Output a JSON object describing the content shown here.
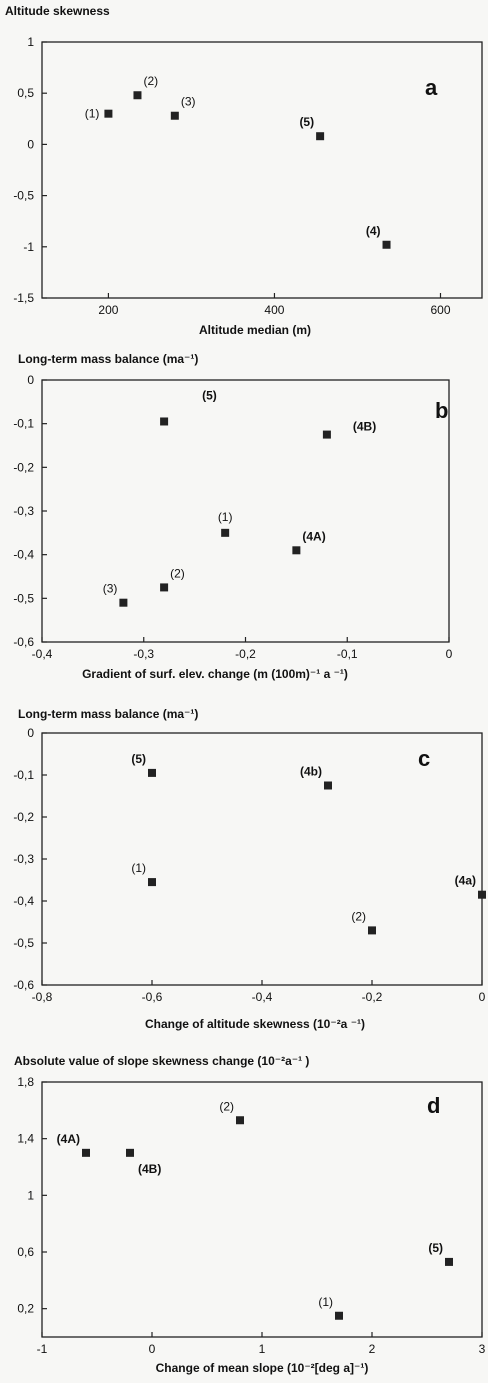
{
  "chart_data": [
    {
      "type": "scatter",
      "panel": "a",
      "title": "Altitude skewness",
      "xlabel": "Altitude median (m)",
      "ylabel": "",
      "xlim": [
        120,
        650
      ],
      "ylim": [
        -1.5,
        1
      ],
      "xticks": [
        {
          "v": 200,
          "label": "200"
        },
        {
          "v": 400,
          "label": "400"
        },
        {
          "v": 600,
          "label": "600"
        }
      ],
      "yticks": [
        {
          "v": 1,
          "label": "1"
        },
        {
          "v": 0.5,
          "label": "0,5"
        },
        {
          "v": 0,
          "label": "0"
        },
        {
          "v": -0.5,
          "label": "-0,5"
        },
        {
          "v": -1,
          "label": "-1"
        },
        {
          "v": -1.5,
          "label": "-1,5"
        }
      ],
      "points": [
        {
          "label": "(1)",
          "x": 200,
          "y": 0.3,
          "bold": false,
          "pos": "left"
        },
        {
          "label": "(2)",
          "x": 235,
          "y": 0.48,
          "bold": false,
          "pos": "upright"
        },
        {
          "label": "(3)",
          "x": 280,
          "y": 0.28,
          "bold": false,
          "pos": "upright"
        },
        {
          "label": "(5)",
          "x": 455,
          "y": 0.08,
          "bold": true,
          "pos": "upleft"
        },
        {
          "label": "(4)",
          "x": 535,
          "y": -0.98,
          "bold": true,
          "pos": "upleft"
        }
      ]
    },
    {
      "type": "scatter",
      "panel": "b",
      "title": "Long-term mass balance (ma⁻¹)",
      "xlabel": "Gradient of surf. elev. change (m (100m)⁻¹ a ⁻¹)",
      "ylabel": "",
      "xlim": [
        -0.4,
        0
      ],
      "ylim": [
        -0.6,
        0
      ],
      "xticks": [
        {
          "v": -0.4,
          "label": "-0,4"
        },
        {
          "v": -0.3,
          "label": "-0,3"
        },
        {
          "v": -0.2,
          "label": "-0,2"
        },
        {
          "v": -0.1,
          "label": "-0,1"
        },
        {
          "v": 0,
          "label": "0"
        }
      ],
      "yticks": [
        {
          "v": 0,
          "label": "0"
        },
        {
          "v": -0.1,
          "label": "-0,1"
        },
        {
          "v": -0.2,
          "label": "-0,2"
        },
        {
          "v": -0.3,
          "label": "-0,3"
        },
        {
          "v": -0.4,
          "label": "-0,4"
        },
        {
          "v": -0.5,
          "label": "-0,5"
        },
        {
          "v": -0.6,
          "label": "-0,6"
        }
      ],
      "points": [
        {
          "label": "(5)",
          "x": -0.28,
          "y": -0.095,
          "bold": true,
          "pos": "farupright"
        },
        {
          "label": "(4B)",
          "x": -0.12,
          "y": -0.125,
          "bold": true,
          "pos": "farright"
        },
        {
          "label": "(1)",
          "x": -0.22,
          "y": -0.35,
          "bold": false,
          "pos": "up"
        },
        {
          "label": "(4A)",
          "x": -0.15,
          "y": -0.39,
          "bold": true,
          "pos": "upright"
        },
        {
          "label": "(2)",
          "x": -0.28,
          "y": -0.475,
          "bold": false,
          "pos": "upright"
        },
        {
          "label": "(3)",
          "x": -0.32,
          "y": -0.51,
          "bold": false,
          "pos": "upleft"
        }
      ]
    },
    {
      "type": "scatter",
      "panel": "c",
      "title": "Long-term mass balance (ma⁻¹)",
      "xlabel": "Change of altitude skewness (10⁻²a ⁻¹)",
      "ylabel": "",
      "xlim": [
        -0.8,
        0
      ],
      "ylim": [
        -0.6,
        0
      ],
      "xticks": [
        {
          "v": -0.8,
          "label": "-0,8"
        },
        {
          "v": -0.6,
          "label": "-0,6"
        },
        {
          "v": -0.4,
          "label": "-0,4"
        },
        {
          "v": -0.2,
          "label": "-0,2"
        },
        {
          "v": 0,
          "label": "0"
        }
      ],
      "yticks": [
        {
          "v": 0,
          "label": "0"
        },
        {
          "v": -0.1,
          "label": "-0,1"
        },
        {
          "v": -0.2,
          "label": "-0,2"
        },
        {
          "v": -0.3,
          "label": "-0,3"
        },
        {
          "v": -0.4,
          "label": "-0,4"
        },
        {
          "v": -0.5,
          "label": "-0,5"
        },
        {
          "v": -0.6,
          "label": "-0,6"
        }
      ],
      "points": [
        {
          "label": "(5)",
          "x": -0.6,
          "y": -0.095,
          "bold": true,
          "pos": "upleft"
        },
        {
          "label": "(4b)",
          "x": -0.28,
          "y": -0.125,
          "bold": true,
          "pos": "upleft"
        },
        {
          "label": "(1)",
          "x": -0.6,
          "y": -0.355,
          "bold": false,
          "pos": "upleft"
        },
        {
          "label": "(4a)",
          "x": 0,
          "y": -0.385,
          "bold": true,
          "pos": "upleft"
        },
        {
          "label": "(2)",
          "x": -0.2,
          "y": -0.47,
          "bold": false,
          "pos": "upleft"
        }
      ]
    },
    {
      "type": "scatter",
      "panel": "d",
      "title": "Absolute value of slope skewness change (10⁻²a⁻¹ )",
      "xlabel": "Change of mean slope (10⁻²[deg a]⁻¹)",
      "ylabel": "",
      "xlim": [
        -1,
        3
      ],
      "ylim": [
        0,
        1.8
      ],
      "xticks": [
        {
          "v": -1,
          "label": "-1"
        },
        {
          "v": 0,
          "label": "0"
        },
        {
          "v": 1,
          "label": "1"
        },
        {
          "v": 2,
          "label": "2"
        },
        {
          "v": 3,
          "label": "3"
        }
      ],
      "yticks": [
        {
          "v": 1.8,
          "label": "1,8"
        },
        {
          "v": 1.4,
          "label": "1,4"
        },
        {
          "v": 1,
          "label": "1"
        },
        {
          "v": 0.6,
          "label": "0,6"
        },
        {
          "v": 0.2,
          "label": "0,2"
        }
      ],
      "points": [
        {
          "label": "(4A)",
          "x": -0.6,
          "y": 1.3,
          "bold": true,
          "pos": "upleft"
        },
        {
          "label": "(4B)",
          "x": -0.2,
          "y": 1.3,
          "bold": true,
          "pos": "downright"
        },
        {
          "label": "(2)",
          "x": 0.8,
          "y": 1.53,
          "bold": false,
          "pos": "upleft"
        },
        {
          "label": "(5)",
          "x": 2.7,
          "y": 0.53,
          "bold": true,
          "pos": "upleft"
        },
        {
          "label": "(1)",
          "x": 1.7,
          "y": 0.15,
          "bold": false,
          "pos": "upleft"
        }
      ]
    }
  ]
}
